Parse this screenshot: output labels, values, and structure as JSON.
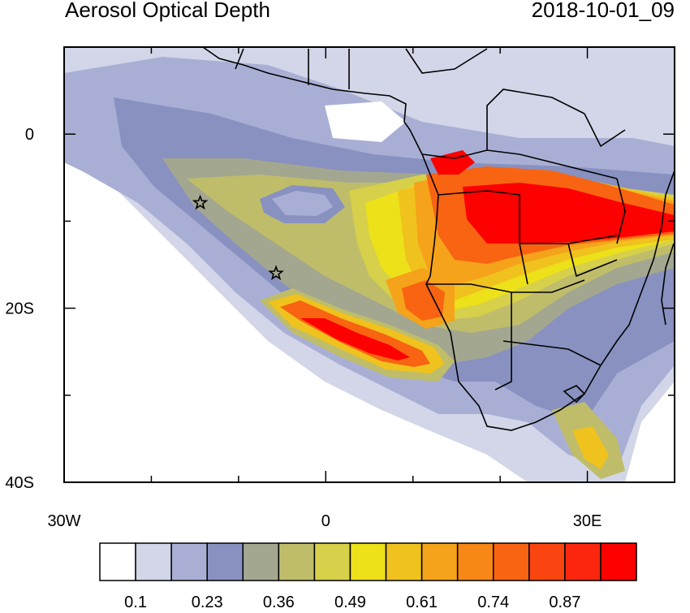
{
  "header": {
    "title": "Aerosol Optical Depth",
    "datetime": "2018-10-01_09"
  },
  "map": {
    "region": "South Atlantic and Southern Africa",
    "lon_range": [
      -30,
      40
    ],
    "lat_range": [
      -40,
      10
    ],
    "x_ticks": [
      {
        "lon": -30,
        "label": "30W"
      },
      {
        "lon": 0,
        "label": "0"
      },
      {
        "lon": 30,
        "label": "30E"
      }
    ],
    "y_ticks": [
      {
        "lat": 0,
        "label": "0"
      },
      {
        "lat": -20,
        "label": "20S"
      },
      {
        "lat": -40,
        "label": "40S"
      }
    ],
    "markers": [
      {
        "name": "star",
        "lon": -14.4,
        "lat": -7.9
      },
      {
        "name": "star",
        "lon": -5.7,
        "lat": -16.0
      }
    ]
  },
  "colorbar": {
    "colors": [
      "#ffffff",
      "#d2d6e8",
      "#a9afd4",
      "#8891c0",
      "#a3a790",
      "#bfbd6a",
      "#d6d04a",
      "#ede11a",
      "#f0c21e",
      "#f5a31a",
      "#f78716",
      "#f86412",
      "#fa4510",
      "#fb260d",
      "#fd0000"
    ],
    "labels": [
      "0.1",
      "0.23",
      "0.36",
      "0.49",
      "0.61",
      "0.74",
      "0.87"
    ]
  }
}
